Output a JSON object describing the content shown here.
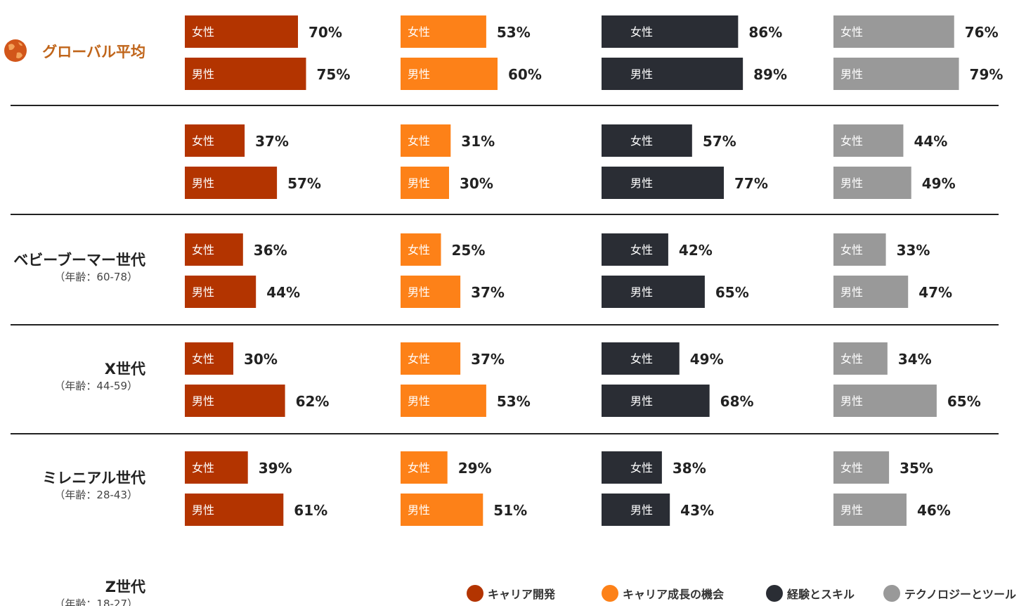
{
  "chart_data": {
    "type": "bar",
    "orientation": "horizontal",
    "unit": "%",
    "gender_labels": {
      "female": "女性",
      "male": "男性"
    },
    "series": [
      {
        "key": "career_dev",
        "name": "キャリア開発",
        "color": "#b33400"
      },
      {
        "key": "growth",
        "name": "キャリア成長の機会",
        "color": "#fd8118"
      },
      {
        "key": "experience",
        "name": "経験とスキル",
        "color": "#2a2d34"
      },
      {
        "key": "tech",
        "name": "テクノロジーとツール",
        "color": "#999999"
      }
    ],
    "groups": [
      {
        "title": "グローバル平均",
        "subtitle": "",
        "highlight": true,
        "female": [
          70,
          53,
          86,
          76
        ],
        "male": [
          75,
          60,
          89,
          79
        ]
      },
      {
        "title": "ベビーブーマー世代",
        "subtitle": "（年齢：60-78）",
        "female": [
          37,
          31,
          57,
          44
        ],
        "male": [
          57,
          30,
          77,
          49
        ]
      },
      {
        "title": "X世代",
        "subtitle": "（年齢：44-59）",
        "female": [
          36,
          25,
          42,
          33
        ],
        "male": [
          44,
          37,
          65,
          47
        ]
      },
      {
        "title": "ミレニアル世代",
        "subtitle": "（年齢：28-43）",
        "female": [
          30,
          37,
          49,
          34
        ],
        "male": [
          62,
          53,
          68,
          65
        ]
      },
      {
        "title": "Z世代",
        "subtitle": "（年齢：18-27）",
        "female": [
          39,
          29,
          38,
          35
        ],
        "male": [
          61,
          51,
          43,
          46
        ]
      }
    ],
    "legend_placement": "bottom-right",
    "globe_icon_color": "#d2561a"
  }
}
